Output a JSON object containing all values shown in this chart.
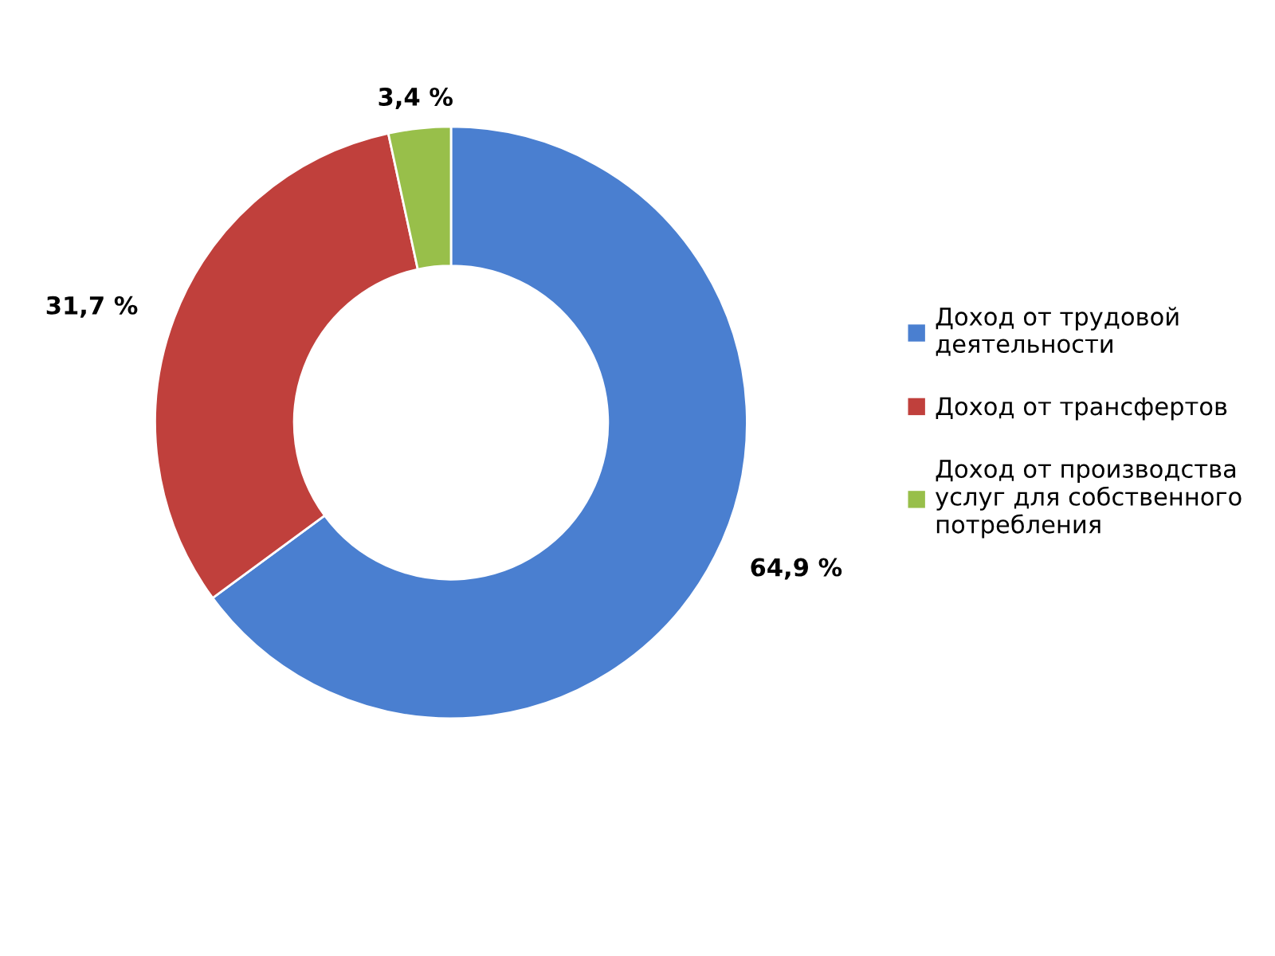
{
  "chart_data": {
    "type": "donut",
    "categories": [
      "Доход от трудовой деятельности",
      "Доход от трансфертов",
      "Доход от производства услуг для собственного потребления"
    ],
    "values": [
      64.9,
      31.7,
      3.4
    ],
    "value_labels": [
      "64,9 %",
      "31,7 %",
      "3,4 %"
    ],
    "colors": [
      "#4a7fd0",
      "#c0403c",
      "#98bf4a"
    ],
    "legend": "right"
  }
}
